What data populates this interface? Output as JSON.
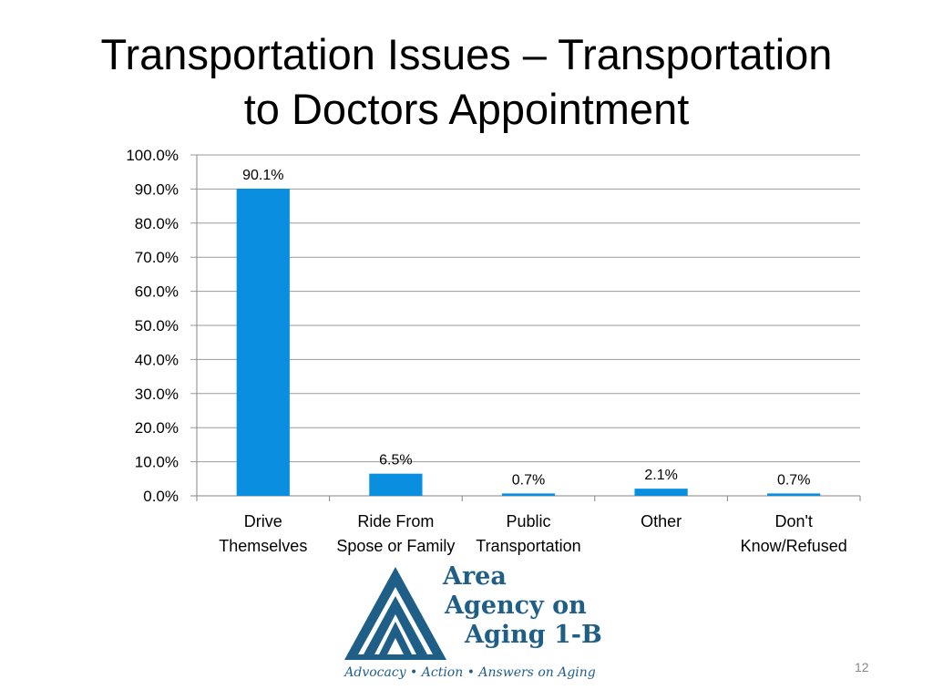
{
  "slide": {
    "title_line1": "Transportation Issues – Transportation",
    "title_line2": "to Doctors Appointment",
    "page_number": "12"
  },
  "chart_data": {
    "type": "bar",
    "categories": [
      [
        "Drive",
        "Themselves"
      ],
      [
        "Ride From",
        "Spose or Family"
      ],
      [
        "Public",
        "Transportation"
      ],
      [
        "Other"
      ],
      [
        "Don't",
        "Know/Refused"
      ]
    ],
    "values": [
      90.1,
      6.5,
      0.7,
      2.1,
      0.7
    ],
    "value_labels": [
      "90.1%",
      "6.5%",
      "0.7%",
      "2.1%",
      "0.7%"
    ],
    "yticks": [
      "0.0%",
      "10.0%",
      "20.0%",
      "30.0%",
      "40.0%",
      "50.0%",
      "60.0%",
      "70.0%",
      "80.0%",
      "90.0%",
      "100.0%"
    ],
    "ylim": [
      0,
      100
    ],
    "grid": true,
    "legend": "none",
    "bar_color": "#0a8fe0"
  },
  "logo": {
    "line1": "Area",
    "line2": "Agency on",
    "line3": "Aging 1-B",
    "tagline": "Advocacy • Action • Answers on Aging",
    "color": "#1f5f87"
  }
}
